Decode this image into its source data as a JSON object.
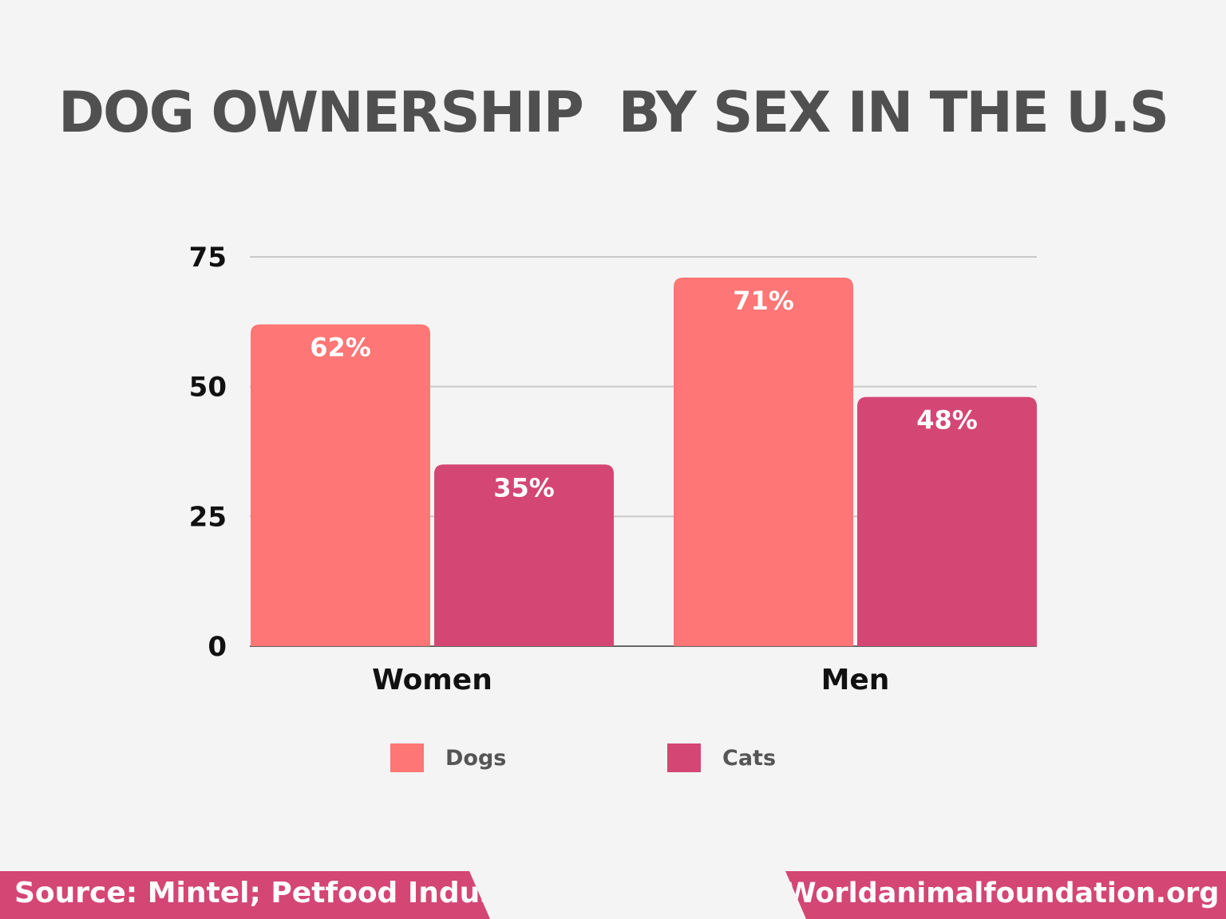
{
  "colors": {
    "dogs": "#fe7675",
    "cats": "#d44673",
    "banner": "#d44673",
    "grid": "#c8c8c8"
  },
  "chart_data": {
    "type": "bar",
    "title": "DOG OWNERSHIP  BY SEX IN THE U.S",
    "categories": [
      "Women",
      "Men"
    ],
    "series": [
      {
        "name": "Dogs",
        "values": [
          62,
          71
        ],
        "labels": [
          "62%",
          "71%"
        ]
      },
      {
        "name": "Cats",
        "values": [
          35,
          48
        ],
        "labels": [
          "35%",
          "48%"
        ]
      }
    ],
    "yticks": [
      "0",
      "25",
      "50",
      "75"
    ],
    "ylim": [
      0,
      75
    ],
    "grid": true,
    "legend": "bottom",
    "xlabel": "",
    "ylabel": ""
  },
  "footer": {
    "source": "Source: Mintel; Petfood Industry",
    "site": "Worldanimalfoundation.org"
  }
}
